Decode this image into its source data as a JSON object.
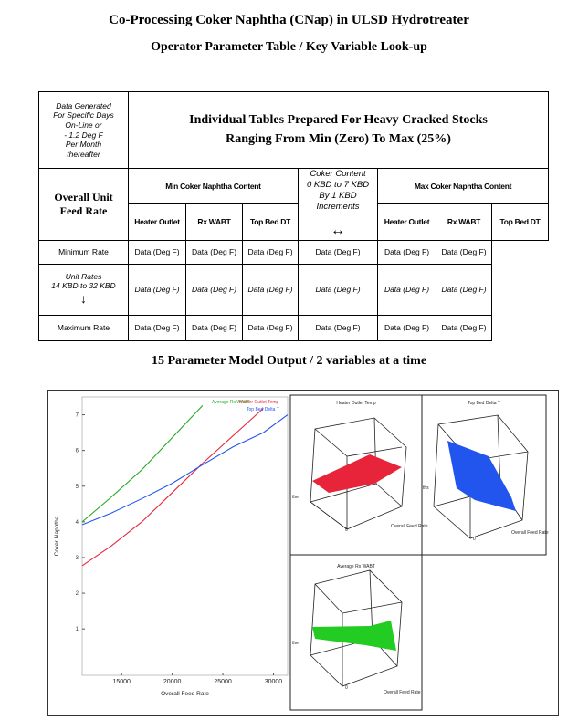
{
  "header": {
    "title": "Co-Processing Coker Naphtha (CNap) in ULSD Hydrotreater",
    "subtitle": "Operator Parameter Table / Key Variable Look-up"
  },
  "table": {
    "note": [
      "Data Generated",
      "For Specific Days",
      "On-Line or",
      "- 1.2 Deg F",
      "Per Month",
      "thereafter"
    ],
    "heading": [
      "Individual Tables Prepared For Heavy Cracked Stocks",
      "Ranging From Min (Zero) To Max (25%)"
    ],
    "row_header": [
      "Overall Unit",
      "Feed Rate"
    ],
    "groups": [
      "Min Coker Naphtha Content",
      "Max Coker Naphtha Content"
    ],
    "columns": [
      "Heater Outlet",
      "Rx WABT",
      "Top Bed DT",
      "Heater Outlet",
      "Rx WABT",
      "Top Bed DT"
    ],
    "middle": [
      "Coker Content",
      "0 KBD to 7 KBD",
      "By 1 KBD",
      "Increments"
    ],
    "middle_arrow": "↔",
    "rows": [
      {
        "label": [
          "Minimum Rate"
        ],
        "cells": [
          "Data (Deg F)",
          "Data (Deg F)",
          "Data (Deg F)",
          "Data (Deg F)",
          "Data (Deg F)",
          "Data (Deg F)"
        ]
      },
      {
        "label": [
          "Unit Rates",
          "14 KBD to 32 KBD",
          "↓"
        ],
        "cells": [
          "Data (Deg F)",
          "Data (Deg F)",
          "Data (Deg F)",
          "Data (Deg F)",
          "Data (Deg F)",
          "Data (Deg F)"
        ]
      },
      {
        "label": [
          "Maximum Rate"
        ],
        "cells": [
          "Data (Deg F)",
          "Data (Deg F)",
          "Data (Deg F)",
          "Data (Deg F)",
          "Data (Deg F)",
          "Data (Deg F)"
        ]
      }
    ]
  },
  "figure": {
    "title": "15 Parameter Model Output / 2 variables at a time",
    "panels": [
      {
        "title": "Heater Outlet Temp",
        "z_label": "the",
        "origin": "0",
        "x_label": "Overall Feed Rate"
      },
      {
        "title": "Top Bed Delta T",
        "z_label": "ths",
        "origin": "0",
        "x_label": "Overall Feed Rate"
      },
      {
        "title": "Average Rx WABT",
        "z_label": "the",
        "origin": "0",
        "x_label": "Overall Feed Rate"
      }
    ]
  },
  "chart_data": {
    "type": "line",
    "x_label": "Overall Feed Rate",
    "y_label": "Coker Naphtha",
    "x": [
      11100,
      14000,
      17000,
      20000,
      23000,
      26000,
      29000,
      31400
    ],
    "series": [
      {
        "name": "Average Rx WABT",
        "color": "#22aa22",
        "values": [
          4.0,
          4.7,
          5.46,
          6.36,
          7.26,
          null,
          null,
          null
        ]
      },
      {
        "name": "Heater Outlet Temp",
        "color": "#e8243a",
        "values": [
          2.77,
          3.33,
          4.0,
          4.82,
          5.64,
          6.41,
          7.18,
          null
        ]
      },
      {
        "name": "Top Bed Delta T",
        "color": "#2255ee",
        "values": [
          3.92,
          4.25,
          4.65,
          5.08,
          5.6,
          6.1,
          6.5,
          7.0
        ]
      }
    ],
    "xlim": [
      11100,
      31400
    ],
    "ylim": [
      -0.3,
      7.5
    ],
    "xticks": [
      15000,
      20000,
      25000,
      30000
    ],
    "yticks": [
      1,
      2,
      3,
      4,
      5,
      6,
      7
    ]
  }
}
